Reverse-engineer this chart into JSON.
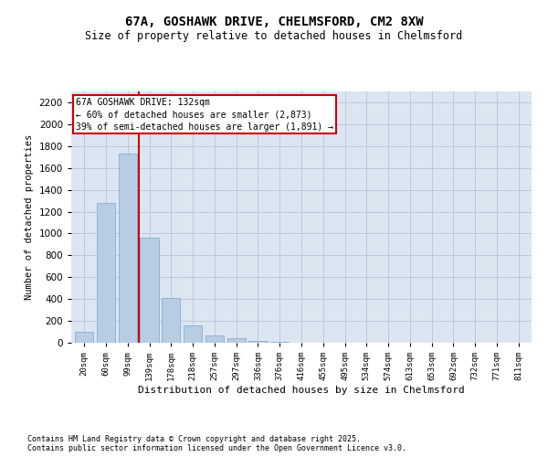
{
  "title_line1": "67A, GOSHAWK DRIVE, CHELMSFORD, CM2 8XW",
  "title_line2": "Size of property relative to detached houses in Chelmsford",
  "xlabel": "Distribution of detached houses by size in Chelmsford",
  "ylabel": "Number of detached properties",
  "categories": [
    "20sqm",
    "60sqm",
    "99sqm",
    "139sqm",
    "178sqm",
    "218sqm",
    "257sqm",
    "297sqm",
    "336sqm",
    "376sqm",
    "416sqm",
    "455sqm",
    "495sqm",
    "534sqm",
    "574sqm",
    "613sqm",
    "653sqm",
    "692sqm",
    "732sqm",
    "771sqm",
    "811sqm"
  ],
  "values": [
    100,
    1280,
    1730,
    960,
    410,
    160,
    70,
    40,
    20,
    10,
    2,
    0,
    0,
    0,
    0,
    0,
    0,
    0,
    0,
    0,
    0
  ],
  "bar_color": "#b8cce4",
  "bar_edge_color": "#7aa6cc",
  "grid_color": "#c0c8d8",
  "background_color": "#dce6f1",
  "vline_color": "#cc0000",
  "annotation_text": "67A GOSHAWK DRIVE: 132sqm\n← 60% of detached houses are smaller (2,873)\n39% of semi-detached houses are larger (1,891) →",
  "annotation_box_color": "#cc0000",
  "ylim": [
    0,
    2300
  ],
  "yticks": [
    0,
    200,
    400,
    600,
    800,
    1000,
    1200,
    1400,
    1600,
    1800,
    2000,
    2200
  ],
  "footer_line1": "Contains HM Land Registry data © Crown copyright and database right 2025.",
  "footer_line2": "Contains public sector information licensed under the Open Government Licence v3.0."
}
